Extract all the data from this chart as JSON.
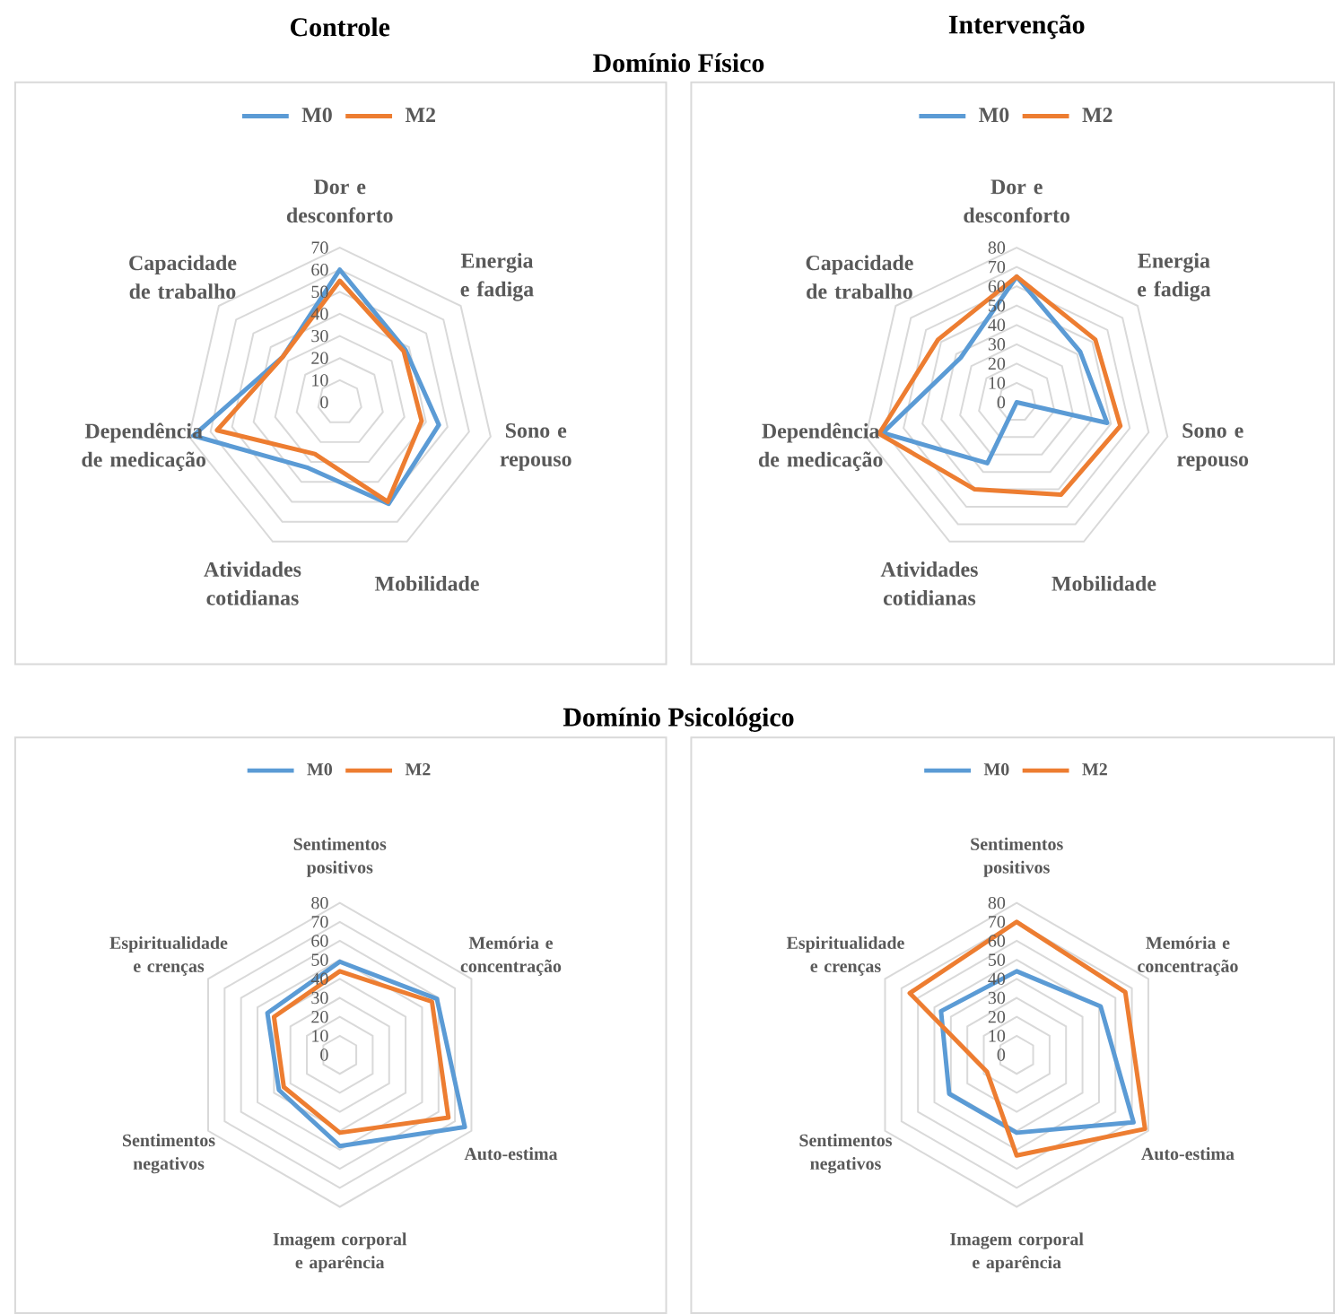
{
  "chart_data": [
    {
      "type": "radar",
      "title": "Controle",
      "subtitle": "Domínio Físico",
      "categories": [
        "Dor e desconforto",
        "Energia e fadiga",
        "Sono e repouso",
        "Mobilidade",
        "Atividades cotidianas",
        "Dependência de medicação",
        "Capacidade de trabalho"
      ],
      "ylim": [
        0,
        70
      ],
      "yticks": [
        0,
        10,
        20,
        30,
        40,
        50,
        60,
        70
      ],
      "grid": true,
      "legend": "top",
      "series": [
        {
          "name": "M0",
          "color": "#5b9bd5",
          "values": [
            60,
            38,
            46,
            51,
            33,
            68,
            33
          ]
        },
        {
          "name": "M2",
          "color": "#ed7d31",
          "values": [
            55,
            37,
            38,
            50,
            26,
            57,
            33
          ]
        }
      ]
    },
    {
      "type": "radar",
      "title": "Intervenção",
      "categories": [
        "Dor e desconforto",
        "Energia e fadiga",
        "Sono e repouso",
        "Mobilidade",
        "Atividades cotidianas",
        "Dependência de medicação",
        "Capacidade de trabalho"
      ],
      "ylim": [
        0,
        80
      ],
      "yticks": [
        0,
        10,
        20,
        30,
        40,
        50,
        60,
        70,
        80
      ],
      "grid": true,
      "legend": "top",
      "series": [
        {
          "name": "M0",
          "color": "#5b9bd5",
          "values": [
            65,
            42,
            48,
            0,
            35,
            71,
            37
          ]
        },
        {
          "name": "M2",
          "color": "#ed7d31",
          "values": [
            65,
            52,
            55,
            53,
            50,
            73,
            52
          ]
        }
      ]
    },
    {
      "type": "radar",
      "title": "Domínio Psicológico",
      "categories": [
        "Sentimentos positivos",
        "Memória e concentração",
        "Auto-estima",
        "Imagem corporal e aparência",
        "Sentimentos negativos",
        "Espiritualidade e crenças"
      ],
      "ylim": [
        0,
        80
      ],
      "yticks": [
        0,
        10,
        20,
        30,
        40,
        50,
        60,
        70,
        80
      ],
      "grid": true,
      "legend": "top",
      "series": [
        {
          "name": "M0",
          "color": "#5b9bd5",
          "values": [
            49,
            59,
            76,
            48,
            37,
            44
          ]
        },
        {
          "name": "M2",
          "color": "#ed7d31",
          "values": [
            44,
            56,
            66,
            41,
            34,
            40
          ]
        }
      ]
    },
    {
      "type": "radar",
      "categories": [
        "Sentimentos positivos",
        "Memória e concentração",
        "Auto-estima",
        "Imagem corporal e aparência",
        "Sentimentos negativos",
        "Espiritualidade e crenças"
      ],
      "ylim": [
        0,
        80
      ],
      "yticks": [
        0,
        10,
        20,
        30,
        40,
        50,
        60,
        70,
        80
      ],
      "grid": true,
      "legend": "top",
      "series": [
        {
          "name": "M0",
          "color": "#5b9bd5",
          "values": [
            44,
            51,
            71,
            41,
            41,
            46
          ]
        },
        {
          "name": "M2",
          "color": "#ed7d31",
          "values": [
            70,
            66,
            78,
            53,
            18,
            65
          ]
        }
      ]
    }
  ]
}
